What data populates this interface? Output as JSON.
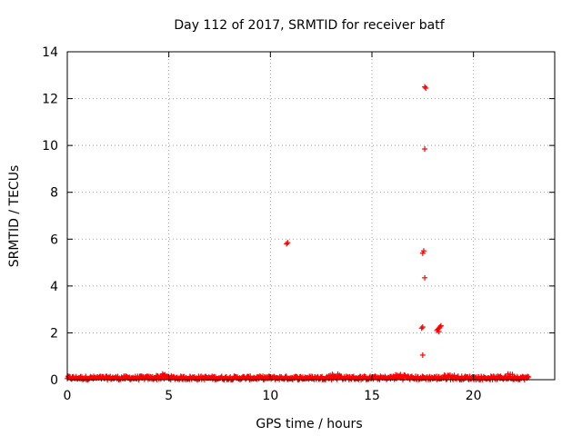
{
  "chart_data": {
    "type": "scatter",
    "title": "Day 112 of 2017, SRMTID for receiver batf",
    "xlabel": "GPS time / hours",
    "ylabel": "SRMTID / TECUs",
    "xlim": [
      0,
      24
    ],
    "ylim": [
      0,
      14
    ],
    "x_ticks": [
      0,
      5,
      10,
      15,
      20
    ],
    "y_ticks": [
      0,
      2,
      4,
      6,
      8,
      10,
      12,
      14
    ],
    "grid": true,
    "marker": "plus",
    "color": "#ff0000",
    "baseline_band": {
      "x_range": [
        0,
        22.7
      ],
      "typical_max": 0.15,
      "bumps": [
        {
          "x": 4.7,
          "y": 0.25
        },
        {
          "x": 13.2,
          "y": 0.3
        },
        {
          "x": 16.4,
          "y": 0.28
        },
        {
          "x": 18.8,
          "y": 0.25
        },
        {
          "x": 21.8,
          "y": 0.28
        }
      ]
    },
    "series": [
      {
        "name": "SRMTID",
        "points": [
          {
            "x": 10.8,
            "y": 5.8
          },
          {
            "x": 10.85,
            "y": 5.85
          },
          {
            "x": 17.5,
            "y": 5.4
          },
          {
            "x": 17.55,
            "y": 5.5
          },
          {
            "x": 17.6,
            "y": 12.5
          },
          {
            "x": 17.65,
            "y": 12.45
          },
          {
            "x": 17.6,
            "y": 9.85
          },
          {
            "x": 17.6,
            "y": 4.35
          },
          {
            "x": 17.45,
            "y": 2.2
          },
          {
            "x": 17.5,
            "y": 2.25
          },
          {
            "x": 17.5,
            "y": 1.05
          },
          {
            "x": 18.2,
            "y": 2.1
          },
          {
            "x": 18.25,
            "y": 2.15
          },
          {
            "x": 18.3,
            "y": 2.2
          },
          {
            "x": 18.35,
            "y": 2.25
          },
          {
            "x": 18.4,
            "y": 2.3
          },
          {
            "x": 18.3,
            "y": 2.05
          }
        ]
      }
    ]
  }
}
